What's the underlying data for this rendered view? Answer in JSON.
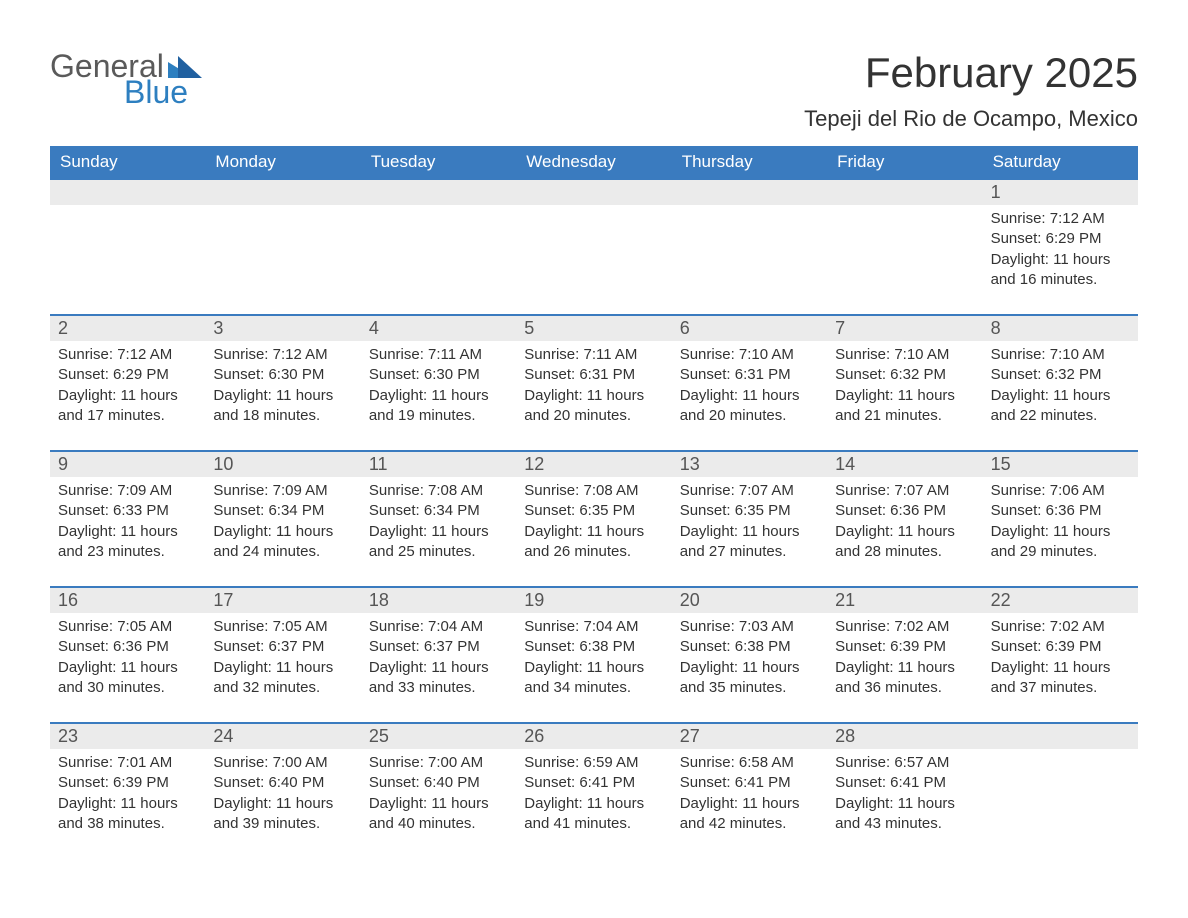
{
  "logo": {
    "word1": "General",
    "word2": "Blue"
  },
  "title": "February 2025",
  "location": "Tepeji del Rio de Ocampo, Mexico",
  "colors": {
    "header_bg": "#3a7bbf",
    "border_top": "#3a7bbf",
    "daynum_bg": "#ebebeb",
    "text": "#333333",
    "logo_grey": "#5a5a5a",
    "logo_blue": "#2d7fc0"
  },
  "dayNames": [
    "Sunday",
    "Monday",
    "Tuesday",
    "Wednesday",
    "Thursday",
    "Friday",
    "Saturday"
  ],
  "weeks": [
    [
      null,
      null,
      null,
      null,
      null,
      null,
      {
        "n": "1",
        "sunrise": "7:12 AM",
        "sunset": "6:29 PM",
        "dl1": "Daylight: 11 hours",
        "dl2": "and 16 minutes."
      }
    ],
    [
      {
        "n": "2",
        "sunrise": "7:12 AM",
        "sunset": "6:29 PM",
        "dl1": "Daylight: 11 hours",
        "dl2": "and 17 minutes."
      },
      {
        "n": "3",
        "sunrise": "7:12 AM",
        "sunset": "6:30 PM",
        "dl1": "Daylight: 11 hours",
        "dl2": "and 18 minutes."
      },
      {
        "n": "4",
        "sunrise": "7:11 AM",
        "sunset": "6:30 PM",
        "dl1": "Daylight: 11 hours",
        "dl2": "and 19 minutes."
      },
      {
        "n": "5",
        "sunrise": "7:11 AM",
        "sunset": "6:31 PM",
        "dl1": "Daylight: 11 hours",
        "dl2": "and 20 minutes."
      },
      {
        "n": "6",
        "sunrise": "7:10 AM",
        "sunset": "6:31 PM",
        "dl1": "Daylight: 11 hours",
        "dl2": "and 20 minutes."
      },
      {
        "n": "7",
        "sunrise": "7:10 AM",
        "sunset": "6:32 PM",
        "dl1": "Daylight: 11 hours",
        "dl2": "and 21 minutes."
      },
      {
        "n": "8",
        "sunrise": "7:10 AM",
        "sunset": "6:32 PM",
        "dl1": "Daylight: 11 hours",
        "dl2": "and 22 minutes."
      }
    ],
    [
      {
        "n": "9",
        "sunrise": "7:09 AM",
        "sunset": "6:33 PM",
        "dl1": "Daylight: 11 hours",
        "dl2": "and 23 minutes."
      },
      {
        "n": "10",
        "sunrise": "7:09 AM",
        "sunset": "6:34 PM",
        "dl1": "Daylight: 11 hours",
        "dl2": "and 24 minutes."
      },
      {
        "n": "11",
        "sunrise": "7:08 AM",
        "sunset": "6:34 PM",
        "dl1": "Daylight: 11 hours",
        "dl2": "and 25 minutes."
      },
      {
        "n": "12",
        "sunrise": "7:08 AM",
        "sunset": "6:35 PM",
        "dl1": "Daylight: 11 hours",
        "dl2": "and 26 minutes."
      },
      {
        "n": "13",
        "sunrise": "7:07 AM",
        "sunset": "6:35 PM",
        "dl1": "Daylight: 11 hours",
        "dl2": "and 27 minutes."
      },
      {
        "n": "14",
        "sunrise": "7:07 AM",
        "sunset": "6:36 PM",
        "dl1": "Daylight: 11 hours",
        "dl2": "and 28 minutes."
      },
      {
        "n": "15",
        "sunrise": "7:06 AM",
        "sunset": "6:36 PM",
        "dl1": "Daylight: 11 hours",
        "dl2": "and 29 minutes."
      }
    ],
    [
      {
        "n": "16",
        "sunrise": "7:05 AM",
        "sunset": "6:36 PM",
        "dl1": "Daylight: 11 hours",
        "dl2": "and 30 minutes."
      },
      {
        "n": "17",
        "sunrise": "7:05 AM",
        "sunset": "6:37 PM",
        "dl1": "Daylight: 11 hours",
        "dl2": "and 32 minutes."
      },
      {
        "n": "18",
        "sunrise": "7:04 AM",
        "sunset": "6:37 PM",
        "dl1": "Daylight: 11 hours",
        "dl2": "and 33 minutes."
      },
      {
        "n": "19",
        "sunrise": "7:04 AM",
        "sunset": "6:38 PM",
        "dl1": "Daylight: 11 hours",
        "dl2": "and 34 minutes."
      },
      {
        "n": "20",
        "sunrise": "7:03 AM",
        "sunset": "6:38 PM",
        "dl1": "Daylight: 11 hours",
        "dl2": "and 35 minutes."
      },
      {
        "n": "21",
        "sunrise": "7:02 AM",
        "sunset": "6:39 PM",
        "dl1": "Daylight: 11 hours",
        "dl2": "and 36 minutes."
      },
      {
        "n": "22",
        "sunrise": "7:02 AM",
        "sunset": "6:39 PM",
        "dl1": "Daylight: 11 hours",
        "dl2": "and 37 minutes."
      }
    ],
    [
      {
        "n": "23",
        "sunrise": "7:01 AM",
        "sunset": "6:39 PM",
        "dl1": "Daylight: 11 hours",
        "dl2": "and 38 minutes."
      },
      {
        "n": "24",
        "sunrise": "7:00 AM",
        "sunset": "6:40 PM",
        "dl1": "Daylight: 11 hours",
        "dl2": "and 39 minutes."
      },
      {
        "n": "25",
        "sunrise": "7:00 AM",
        "sunset": "6:40 PM",
        "dl1": "Daylight: 11 hours",
        "dl2": "and 40 minutes."
      },
      {
        "n": "26",
        "sunrise": "6:59 AM",
        "sunset": "6:41 PM",
        "dl1": "Daylight: 11 hours",
        "dl2": "and 41 minutes."
      },
      {
        "n": "27",
        "sunrise": "6:58 AM",
        "sunset": "6:41 PM",
        "dl1": "Daylight: 11 hours",
        "dl2": "and 42 minutes."
      },
      {
        "n": "28",
        "sunrise": "6:57 AM",
        "sunset": "6:41 PM",
        "dl1": "Daylight: 11 hours",
        "dl2": "and 43 minutes."
      },
      null
    ]
  ],
  "labels": {
    "sunrise": "Sunrise: ",
    "sunset": "Sunset: "
  }
}
